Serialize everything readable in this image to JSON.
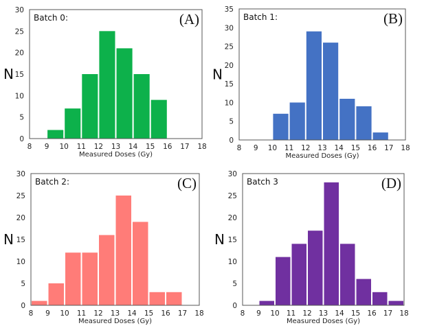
{
  "chart_data": [
    {
      "type": "bar",
      "panel_label": "(A)",
      "title": "Batch 0:",
      "xlabel": "Measured Doses (Gy)",
      "ylabel": "N",
      "xlim": [
        8,
        18
      ],
      "ylim": [
        0,
        30
      ],
      "xticks": [
        8,
        9,
        10,
        11,
        12,
        13,
        14,
        15,
        16,
        17,
        18
      ],
      "yticks": [
        0,
        5,
        10,
        15,
        20,
        25,
        30
      ],
      "color": "#0db14b",
      "bins": [
        [
          9,
          10
        ],
        [
          10,
          11
        ],
        [
          11,
          12
        ],
        [
          12,
          13
        ],
        [
          13,
          14
        ],
        [
          14,
          15
        ],
        [
          15,
          16
        ]
      ],
      "values": [
        2,
        7,
        15,
        25,
        21,
        15,
        9
      ]
    },
    {
      "type": "bar",
      "panel_label": "(B)",
      "title": "Batch 1:",
      "xlabel": "Measured Doses (Gy)",
      "ylabel": "N",
      "xlim": [
        8,
        18
      ],
      "ylim": [
        0,
        35
      ],
      "xticks": [
        8,
        9,
        10,
        11,
        12,
        13,
        14,
        15,
        16,
        17,
        18
      ],
      "yticks": [
        0,
        5,
        10,
        15,
        20,
        25,
        30,
        35
      ],
      "color": "#4472c4",
      "bins": [
        [
          10,
          11
        ],
        [
          11,
          12
        ],
        [
          12,
          13
        ],
        [
          13,
          14
        ],
        [
          14,
          15
        ],
        [
          15,
          16
        ],
        [
          16,
          17
        ]
      ],
      "values": [
        7,
        10,
        29,
        26,
        11,
        9,
        2
      ]
    },
    {
      "type": "bar",
      "panel_label": "(C)",
      "title": "Batch 2:",
      "xlabel": "Measured Doses (Gy)",
      "ylabel": "N",
      "xlim": [
        8,
        18
      ],
      "ylim": [
        0,
        30
      ],
      "xticks": [
        8,
        9,
        10,
        11,
        12,
        13,
        14,
        15,
        16,
        17,
        18
      ],
      "yticks": [
        0,
        5,
        10,
        15,
        20,
        25,
        30
      ],
      "color": "#ff7c78",
      "bins": [
        [
          8,
          9
        ],
        [
          9,
          10
        ],
        [
          10,
          11
        ],
        [
          11,
          12
        ],
        [
          12,
          13
        ],
        [
          13,
          14
        ],
        [
          14,
          15
        ],
        [
          15,
          16
        ],
        [
          16,
          17
        ]
      ],
      "values": [
        1,
        5,
        12,
        12,
        16,
        25,
        19,
        3,
        3
      ]
    },
    {
      "type": "bar",
      "panel_label": "(D)",
      "title": "Batch 3",
      "xlabel": "Measured Doses (Gy)",
      "ylabel": "N",
      "xlim": [
        8,
        18
      ],
      "ylim": [
        0,
        30
      ],
      "xticks": [
        8,
        9,
        10,
        11,
        12,
        13,
        14,
        15,
        16,
        17,
        18
      ],
      "yticks": [
        0,
        5,
        10,
        15,
        20,
        25,
        30
      ],
      "color": "#7030a0",
      "bins": [
        [
          9,
          10
        ],
        [
          10,
          11
        ],
        [
          11,
          12
        ],
        [
          12,
          13
        ],
        [
          13,
          14
        ],
        [
          14,
          15
        ],
        [
          15,
          16
        ],
        [
          16,
          17
        ],
        [
          17,
          18
        ]
      ],
      "values": [
        1,
        11,
        14,
        17,
        28,
        14,
        6,
        3,
        1
      ]
    }
  ]
}
